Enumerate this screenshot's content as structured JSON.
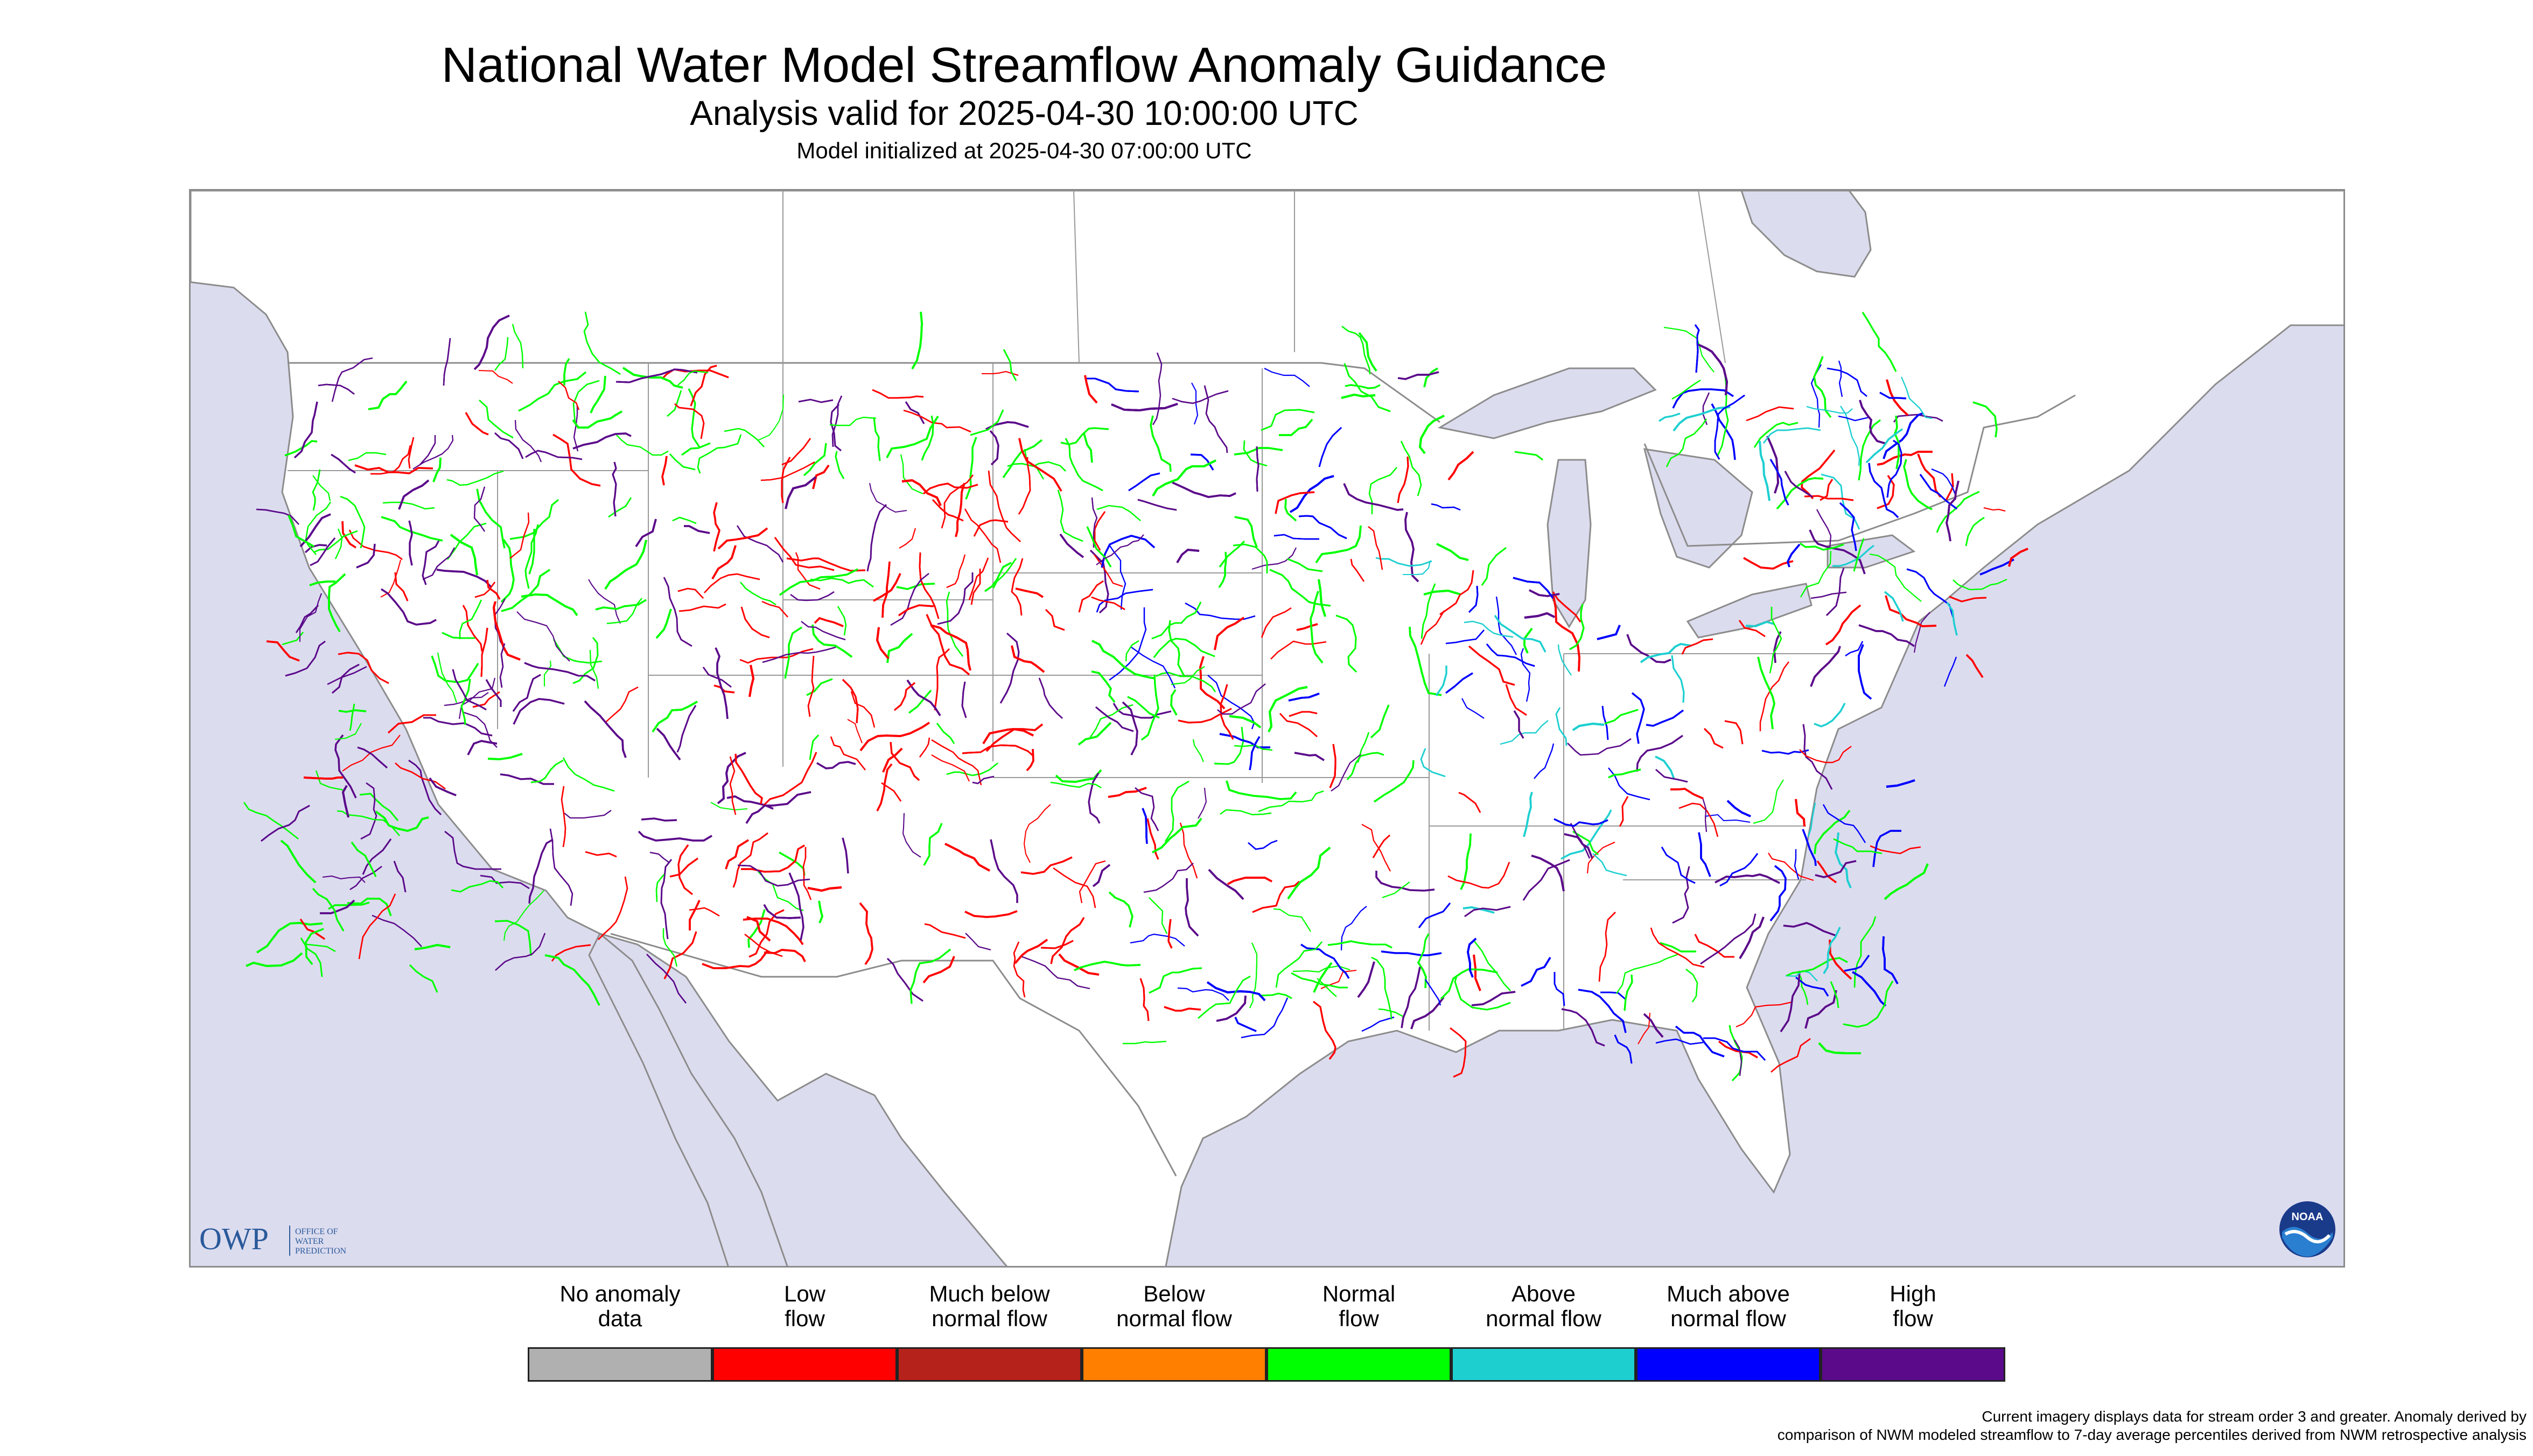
{
  "title": "National Water Model Streamflow Anomaly Guidance",
  "subtitle": "Analysis valid for 2025-04-30 10:00:00 UTC",
  "init": "Model initialized at 2025-04-30 07:00:00 UTC",
  "colors": {
    "water": "#dcdcef",
    "land": "#ffffff",
    "border": "#8c8c8c",
    "low_flow": "#ff0000",
    "normal_flow": "#00ff00",
    "above_normal": "#1ecfd0",
    "much_above": "#0000ff",
    "high_flow": "#5b0a8a"
  },
  "owp_logo": {
    "text": "OWP",
    "line1": "OFFICE OF",
    "line2": "WATER",
    "line3": "PREDICTION"
  },
  "noaa_logo": {
    "text": "NOAA"
  },
  "legend": {
    "items": [
      {
        "label1": "No anomaly",
        "label2": "data",
        "color": "#b0b0b0"
      },
      {
        "label1": "Low",
        "label2": "flow",
        "color": "#ff0000"
      },
      {
        "label1": "Much below",
        "label2": "normal flow",
        "color": "#b5221b"
      },
      {
        "label1": "Below",
        "label2": "normal flow",
        "color": "#ff7f00"
      },
      {
        "label1": "Normal",
        "label2": "flow",
        "color": "#00ff00"
      },
      {
        "label1": "Above",
        "label2": "normal flow",
        "color": "#1ecfd0"
      },
      {
        "label1": "Much above",
        "label2": "normal flow",
        "color": "#0000ff"
      },
      {
        "label1": "High",
        "label2": "flow",
        "color": "#5b0a8a"
      }
    ]
  },
  "footnote": {
    "line1": "Current imagery displays data for stream order 3 and greater. Anomaly derived by",
    "line2": "comparison of NWM modeled streamflow to 7-day average percentiles derived from NWM retrospective analysis"
  }
}
